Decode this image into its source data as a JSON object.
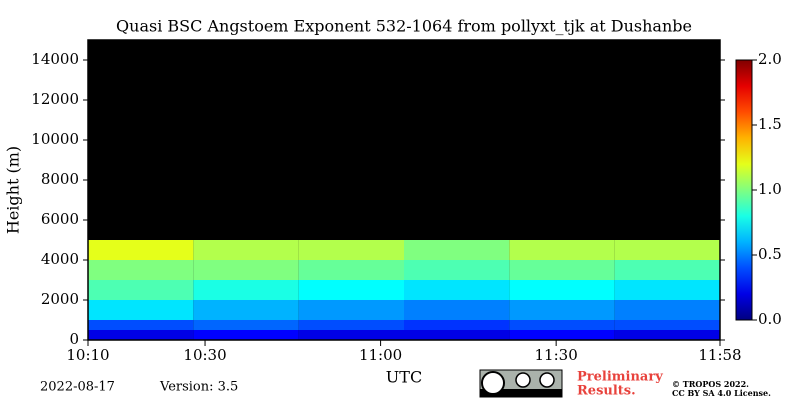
{
  "chart_data": {
    "type": "heatmap",
    "title": "Quasi BSC Angstoem Exponent 532-1064 from pollyxt_tjk at Dushanbe",
    "x_label": "UTC",
    "y_label": "Height (m)",
    "x_edges": [
      610,
      628,
      646,
      664,
      682,
      700,
      718
    ],
    "y_edges": [
      0,
      500,
      1000,
      2000,
      3000,
      4000,
      5000,
      7500,
      10000,
      12500,
      15000
    ],
    "z": [
      [
        0.2,
        0.25,
        0.2,
        0.2,
        0.25,
        0.2
      ],
      [
        0.4,
        0.45,
        0.4,
        0.35,
        0.4,
        0.4
      ],
      [
        0.7,
        0.6,
        0.55,
        0.5,
        0.55,
        0.5
      ],
      [
        0.9,
        0.8,
        0.75,
        0.7,
        0.75,
        0.7
      ],
      [
        1.0,
        1.0,
        0.95,
        0.9,
        0.95,
        0.9
      ],
      [
        1.2,
        1.1,
        1.1,
        1.0,
        1.1,
        1.1
      ],
      [
        null,
        null,
        null,
        null,
        null,
        null
      ],
      [
        null,
        null,
        null,
        null,
        null,
        null
      ],
      [
        null,
        null,
        null,
        null,
        null,
        null
      ],
      [
        null,
        null,
        null,
        null,
        null,
        null
      ]
    ],
    "xlim": [
      610,
      718
    ],
    "xticks": [
      {
        "value": 610,
        "label": "10:10"
      },
      {
        "value": 630,
        "label": "10:30"
      },
      {
        "value": 660,
        "label": "11:00"
      },
      {
        "value": 690,
        "label": "11:30"
      },
      {
        "value": 718,
        "label": "11:58"
      }
    ],
    "ylim": [
      0,
      15000
    ],
    "yticks": [
      0,
      2000,
      4000,
      6000,
      8000,
      10000,
      12000,
      14000
    ],
    "clim": [
      0,
      2
    ],
    "cticks": [
      {
        "value": 0,
        "label": "0.0"
      },
      0.5,
      {
        "value": 1,
        "label": "1.0"
      },
      1.5,
      {
        "value": 2,
        "label": "2.0"
      }
    ],
    "colormap": "jet",
    "background": "#000000"
  },
  "footer": {
    "date": "2022-08-17",
    "version": "Version: 3.5",
    "notice": "Preliminary",
    "notice2": "Results.",
    "copyright": "© TROPOS 2022.",
    "license": "CC BY SA 4.0 License."
  }
}
